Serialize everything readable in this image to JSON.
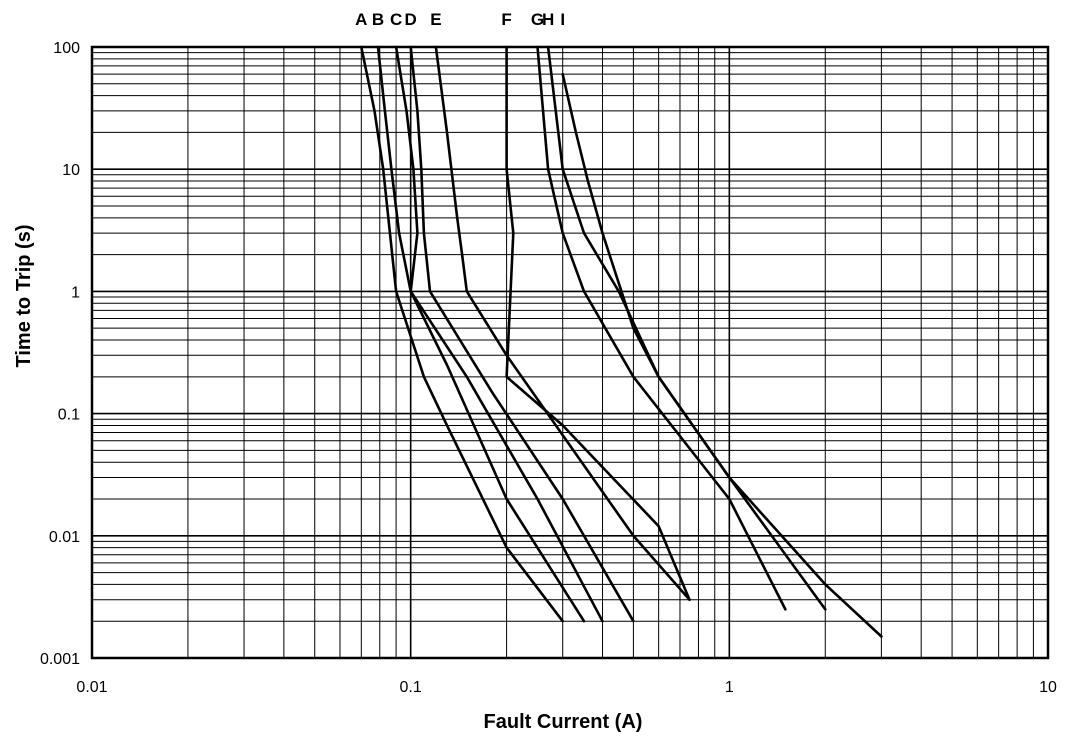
{
  "chart_data": {
    "type": "line",
    "xlabel": "Fault Current (A)",
    "ylabel": "Time to Trip (s)",
    "xscale": "log",
    "yscale": "log",
    "xlim": [
      0.01,
      10
    ],
    "ylim": [
      0.001,
      100
    ],
    "grid": true,
    "x_tick_labels": [
      "0.01",
      "0.1",
      "1",
      "10"
    ],
    "y_tick_labels": [
      "0.001",
      "0.01",
      "0.1",
      "1",
      "10",
      "100"
    ],
    "series": [
      {
        "name": "A",
        "points": [
          [
            0.07,
            100
          ],
          [
            0.077,
            30
          ],
          [
            0.082,
            10
          ],
          [
            0.09,
            1
          ],
          [
            0.11,
            0.2
          ],
          [
            0.13,
            0.08
          ],
          [
            0.2,
            0.008
          ],
          [
            0.3,
            0.002
          ]
        ]
      },
      {
        "name": "B",
        "points": [
          [
            0.079,
            100
          ],
          [
            0.083,
            30
          ],
          [
            0.087,
            10
          ],
          [
            0.092,
            3
          ],
          [
            0.1,
            1
          ],
          [
            0.13,
            0.25
          ],
          [
            0.2,
            0.02
          ],
          [
            0.35,
            0.002
          ]
        ]
      },
      {
        "name": "C",
        "points": [
          [
            0.09,
            100
          ],
          [
            0.097,
            30
          ],
          [
            0.102,
            10
          ],
          [
            0.105,
            3
          ],
          [
            0.1,
            1
          ],
          [
            0.15,
            0.2
          ],
          [
            0.25,
            0.02
          ],
          [
            0.4,
            0.002
          ]
        ]
      },
      {
        "name": "D",
        "points": [
          [
            0.1,
            100
          ],
          [
            0.105,
            30
          ],
          [
            0.108,
            10
          ],
          [
            0.11,
            3
          ],
          [
            0.115,
            1
          ],
          [
            0.18,
            0.15
          ],
          [
            0.3,
            0.02
          ],
          [
            0.5,
            0.002
          ]
        ]
      },
      {
        "name": "E",
        "points": [
          [
            0.12,
            100
          ],
          [
            0.13,
            20
          ],
          [
            0.14,
            4
          ],
          [
            0.145,
            2
          ],
          [
            0.15,
            1
          ],
          [
            0.2,
            0.3
          ],
          [
            0.5,
            0.01
          ],
          [
            0.75,
            0.003
          ]
        ]
      },
      {
        "name": "F",
        "points": [
          [
            0.2,
            100
          ],
          [
            0.2,
            10
          ],
          [
            0.21,
            3
          ],
          [
            0.2,
            0.2
          ],
          [
            0.3,
            0.08
          ],
          [
            0.6,
            0.012
          ],
          [
            0.75,
            0.003
          ]
        ]
      },
      {
        "name": "G",
        "points": [
          [
            0.25,
            100
          ],
          [
            0.27,
            10
          ],
          [
            0.3,
            3
          ],
          [
            0.35,
            1
          ],
          [
            0.5,
            0.2
          ],
          [
            1,
            0.02
          ],
          [
            1.5,
            0.0025
          ]
        ]
      },
      {
        "name": "H",
        "points": [
          [
            0.27,
            100
          ],
          [
            0.3,
            10
          ],
          [
            0.35,
            3
          ],
          [
            0.45,
            1
          ],
          [
            0.6,
            0.2
          ],
          [
            1,
            0.03
          ],
          [
            2,
            0.0025
          ]
        ]
      },
      {
        "name": "I",
        "points": [
          [
            0.3,
            60
          ],
          [
            0.33,
            20
          ],
          [
            0.36,
            8
          ],
          [
            0.4,
            3
          ],
          [
            0.5,
            0.5
          ],
          [
            0.6,
            0.2
          ],
          [
            1,
            0.03
          ],
          [
            2,
            0.004
          ],
          [
            3,
            0.0015
          ]
        ]
      }
    ]
  }
}
